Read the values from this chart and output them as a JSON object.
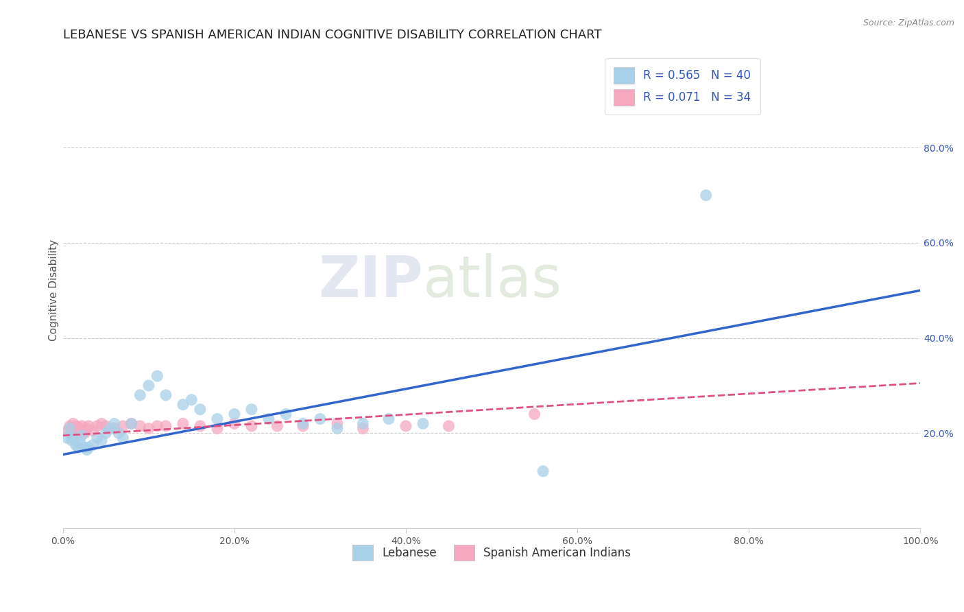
{
  "title": "LEBANESE VS SPANISH AMERICAN INDIAN COGNITIVE DISABILITY CORRELATION CHART",
  "source": "Source: ZipAtlas.com",
  "xlabel": "",
  "ylabel": "Cognitive Disability",
  "r_lebanese": 0.565,
  "n_lebanese": 40,
  "r_spanish": 0.071,
  "n_spanish": 34,
  "color_lebanese": "#a8d0e8",
  "color_lebanese_line": "#3366cc",
  "color_spanish": "#f5a8c0",
  "color_spanish_line": "#e05080",
  "background_color": "#ffffff",
  "grid_color": "#cccccc",
  "legend_text_color": "#3355bb",
  "xlim": [
    0.0,
    1.0
  ],
  "ylim": [
    0.0,
    1.0
  ],
  "xticks": [
    0.0,
    0.2,
    0.4,
    0.6,
    0.8,
    1.0
  ],
  "yticks_right": [
    0.2,
    0.4,
    0.6,
    0.8
  ],
  "xticklabels": [
    "0.0%",
    "20.0%",
    "40.0%",
    "60.0%",
    "80.0%",
    "100.0%"
  ],
  "yticklabels_right": [
    "20.0%",
    "40.0%",
    "60.0%",
    "80.0%"
  ],
  "lebanese_x": [
    0.005,
    0.008,
    0.01,
    0.012,
    0.015,
    0.018,
    0.02,
    0.022,
    0.025,
    0.028,
    0.03,
    0.035,
    0.04,
    0.045,
    0.05,
    0.055,
    0.06,
    0.065,
    0.07,
    0.08,
    0.09,
    0.1,
    0.11,
    0.12,
    0.14,
    0.15,
    0.16,
    0.18,
    0.2,
    0.22,
    0.24,
    0.26,
    0.28,
    0.3,
    0.32,
    0.35,
    0.38,
    0.42,
    0.56,
    0.75
  ],
  "lebanese_y": [
    0.19,
    0.21,
    0.185,
    0.19,
    0.175,
    0.17,
    0.18,
    0.195,
    0.17,
    0.165,
    0.17,
    0.175,
    0.19,
    0.185,
    0.2,
    0.21,
    0.22,
    0.2,
    0.19,
    0.22,
    0.28,
    0.3,
    0.32,
    0.28,
    0.26,
    0.27,
    0.25,
    0.23,
    0.24,
    0.25,
    0.23,
    0.24,
    0.22,
    0.23,
    0.21,
    0.22,
    0.23,
    0.22,
    0.12,
    0.7
  ],
  "spanish_x": [
    0.005,
    0.008,
    0.01,
    0.012,
    0.015,
    0.018,
    0.02,
    0.022,
    0.025,
    0.028,
    0.03,
    0.035,
    0.04,
    0.045,
    0.05,
    0.06,
    0.07,
    0.08,
    0.09,
    0.1,
    0.11,
    0.12,
    0.14,
    0.16,
    0.18,
    0.2,
    0.22,
    0.25,
    0.28,
    0.32,
    0.35,
    0.4,
    0.45,
    0.55
  ],
  "spanish_y": [
    0.205,
    0.215,
    0.21,
    0.22,
    0.215,
    0.205,
    0.21,
    0.215,
    0.2,
    0.21,
    0.215,
    0.205,
    0.215,
    0.22,
    0.215,
    0.21,
    0.215,
    0.22,
    0.215,
    0.21,
    0.215,
    0.215,
    0.22,
    0.215,
    0.21,
    0.22,
    0.215,
    0.215,
    0.215,
    0.22,
    0.21,
    0.215,
    0.215,
    0.24
  ],
  "line_lebanese": [
    0.0,
    1.0,
    0.155,
    0.5
  ],
  "line_spanish": [
    0.0,
    1.0,
    0.195,
    0.305
  ],
  "watermark_zip": "ZIP",
  "watermark_atlas": "atlas",
  "title_fontsize": 13,
  "axis_label_fontsize": 11,
  "tick_fontsize": 10,
  "legend_fontsize": 12
}
